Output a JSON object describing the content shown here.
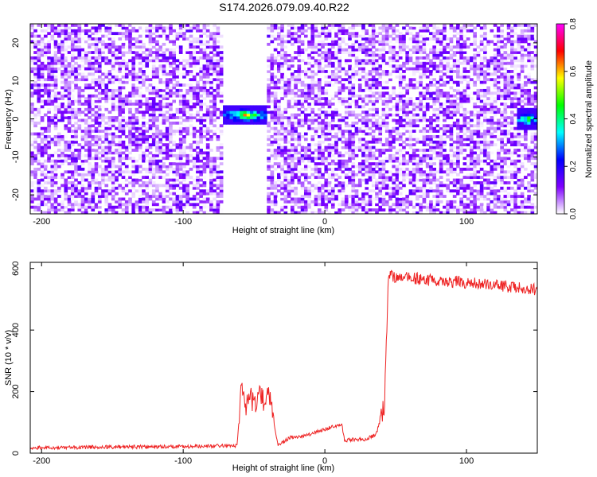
{
  "figure": {
    "title": "S174.2026.079.09.40.R22"
  },
  "chart_data": [
    {
      "type": "heatmap",
      "title": "S174.2026.079.09.40.R22",
      "xlabel": "Height of straight line (km)",
      "ylabel": "Frequency (Hz)",
      "xlim": [
        -208,
        150
      ],
      "ylim": [
        -25,
        25
      ],
      "xticks": [
        -200,
        -100,
        0,
        100
      ],
      "xtick_labels": [
        "-200",
        "-100",
        "0",
        "100"
      ],
      "yticks": [
        -20,
        -10,
        0,
        10,
        20
      ],
      "ytick_labels": [
        "-20",
        "-10",
        "0",
        "10",
        "20"
      ],
      "colorbar": {
        "label": "Normalized spectral amplitude",
        "range": [
          0.0,
          0.8
        ],
        "ticks": [
          0.0,
          0.2,
          0.4,
          0.6,
          0.8
        ],
        "tick_labels": [
          "0.0",
          "0.2",
          "0.4",
          "0.6",
          "0.8"
        ],
        "colormap": [
          "#ffffff",
          "#7f00ff",
          "#0000ff",
          "#00ffff",
          "#00ff00",
          "#ffff00",
          "#ff0000",
          "#ff00ff"
        ]
      },
      "gaps_km": [
        [
          -73,
          -42
        ]
      ],
      "strong_features": [
        {
          "x_range": [
            -73,
            -40
          ],
          "freq_hz": 1,
          "peak_amplitude": 0.6
        },
        {
          "x_range": [
            136,
            150
          ],
          "freq_hz": 0,
          "peak_amplitude": 0.6
        }
      ],
      "noise_amplitude": [
        0.0,
        0.15
      ]
    },
    {
      "type": "line",
      "xlabel": "Height of straight line (km)",
      "ylabel": "SNR (10 * v/v)",
      "xlim": [
        -208,
        150
      ],
      "ylim": [
        0,
        620
      ],
      "xticks": [
        -200,
        -100,
        0,
        100
      ],
      "xtick_labels": [
        "-200",
        "-100",
        "0",
        "100"
      ],
      "yticks": [
        0,
        200,
        400,
        600
      ],
      "ytick_labels": [
        "0",
        "200",
        "400",
        "600"
      ],
      "series": [
        {
          "name": "SNR",
          "color": "#ee2222",
          "x": [
            -208,
            -150,
            -80,
            -62,
            -59,
            -56,
            -53,
            -50,
            -46,
            -43,
            -40,
            -33,
            -25,
            -15,
            -5,
            5,
            12,
            14,
            20,
            28,
            36,
            42,
            45,
            47,
            60,
            80,
            100,
            120,
            140,
            150
          ],
          "y": [
            18,
            20,
            22,
            25,
            210,
            140,
            200,
            150,
            210,
            160,
            200,
            25,
            50,
            55,
            70,
            85,
            90,
            40,
            45,
            45,
            60,
            150,
            580,
            575,
            570,
            560,
            555,
            545,
            535,
            530
          ]
        }
      ]
    }
  ]
}
